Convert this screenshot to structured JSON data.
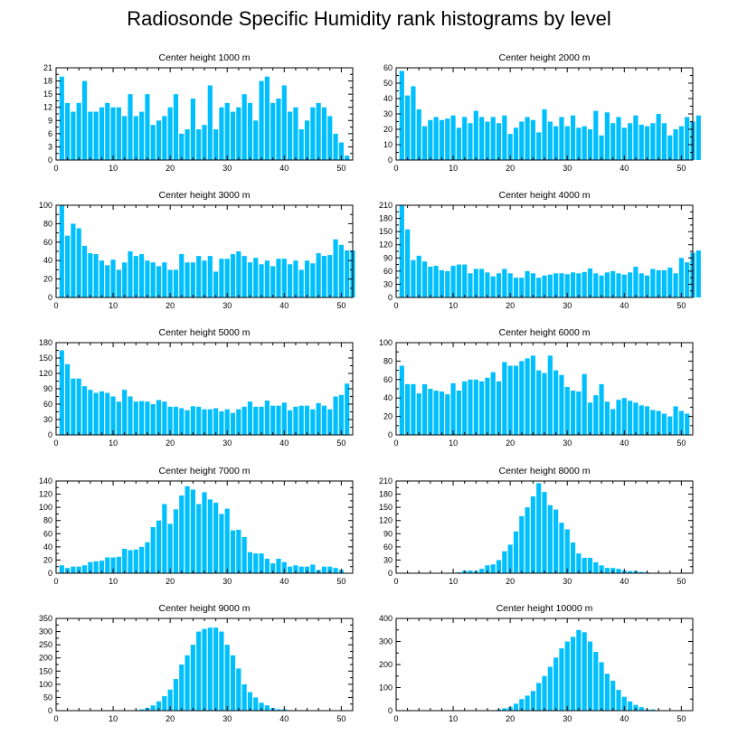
{
  "title": "Radiosonde Specific Humidity rank histograms by level",
  "bar_color": "#00bfff",
  "chart_data": [
    {
      "type": "bar",
      "title": "Center height 1000 m",
      "x_start": 1,
      "xlim": [
        0,
        52
      ],
      "x_ticks": [
        0,
        10,
        20,
        30,
        40,
        50
      ],
      "ylim": [
        0,
        21
      ],
      "y_ticks": [
        0,
        3,
        6,
        9,
        12,
        15,
        18,
        21
      ],
      "values": [
        19,
        13,
        11,
        13,
        18,
        11,
        11,
        12,
        13,
        12,
        12,
        10,
        15,
        10,
        11,
        15,
        8,
        9,
        10,
        12,
        15,
        6,
        7,
        14,
        7,
        8,
        17,
        7,
        12,
        13,
        11,
        12,
        15,
        13,
        9,
        18,
        19,
        13,
        14,
        17,
        11,
        12,
        7,
        9,
        12,
        13,
        12,
        10,
        6,
        4,
        1
      ]
    },
    {
      "type": "bar",
      "title": "Center height 2000 m",
      "x_start": 1,
      "xlim": [
        0,
        52
      ],
      "x_ticks": [
        0,
        10,
        20,
        30,
        40,
        50
      ],
      "ylim": [
        0,
        60
      ],
      "y_ticks": [
        0,
        10,
        20,
        30,
        40,
        50,
        60
      ],
      "values": [
        58,
        42,
        48,
        33,
        22,
        26,
        28,
        26,
        27,
        29,
        21,
        28,
        24,
        32,
        28,
        25,
        28,
        24,
        29,
        17,
        21,
        25,
        28,
        26,
        18,
        33,
        25,
        22,
        28,
        22,
        29,
        21,
        22,
        20,
        32,
        16,
        31,
        24,
        28,
        21,
        24,
        29,
        23,
        22,
        24,
        30,
        24,
        16,
        20,
        22,
        28,
        25,
        29
      ]
    },
    {
      "type": "bar",
      "title": "Center height 3000 m",
      "x_start": 1,
      "xlim": [
        0,
        52
      ],
      "x_ticks": [
        0,
        10,
        20,
        30,
        40,
        50
      ],
      "ylim": [
        0,
        100
      ],
      "y_ticks": [
        0,
        20,
        40,
        60,
        80,
        100
      ],
      "values": [
        100,
        67,
        80,
        75,
        56,
        48,
        47,
        40,
        35,
        41,
        30,
        38,
        50,
        45,
        47,
        40,
        38,
        34,
        38,
        30,
        30,
        47,
        38,
        38,
        45,
        40,
        45,
        28,
        42,
        42,
        47,
        50,
        45,
        38,
        43,
        36,
        40,
        34,
        42,
        42,
        36,
        40,
        30,
        40,
        37,
        48,
        45,
        46,
        63,
        57,
        51,
        51
      ]
    },
    {
      "type": "bar",
      "title": "Center height 4000 m",
      "x_start": 1,
      "xlim": [
        0,
        52
      ],
      "x_ticks": [
        0,
        10,
        20,
        30,
        40,
        50
      ],
      "ylim": [
        0,
        210
      ],
      "y_ticks": [
        0,
        30,
        60,
        90,
        120,
        150,
        180,
        210
      ],
      "values": [
        210,
        155,
        85,
        95,
        82,
        70,
        72,
        62,
        60,
        72,
        75,
        75,
        55,
        65,
        65,
        57,
        48,
        55,
        65,
        55,
        45,
        45,
        60,
        55,
        45,
        50,
        52,
        55,
        55,
        53,
        57,
        55,
        58,
        66,
        55,
        50,
        57,
        60,
        55,
        52,
        57,
        70,
        55,
        50,
        65,
        62,
        62,
        68,
        55,
        90,
        80,
        102,
        107
      ]
    },
    {
      "type": "bar",
      "title": "Center height 5000 m",
      "x_start": 1,
      "xlim": [
        0,
        52
      ],
      "x_ticks": [
        0,
        10,
        20,
        30,
        40,
        50
      ],
      "ylim": [
        0,
        180
      ],
      "y_ticks": [
        0,
        30,
        60,
        90,
        120,
        150,
        180
      ],
      "values": [
        165,
        138,
        110,
        110,
        95,
        88,
        82,
        85,
        82,
        75,
        65,
        88,
        75,
        65,
        66,
        65,
        60,
        68,
        65,
        55,
        55,
        52,
        48,
        56,
        55,
        50,
        50,
        52,
        46,
        50,
        43,
        50,
        55,
        65,
        55,
        55,
        67,
        57,
        57,
        63,
        48,
        55,
        57,
        57,
        50,
        62,
        57,
        50,
        75,
        78,
        100
      ]
    },
    {
      "type": "bar",
      "title": "Center height 6000 m",
      "x_start": 1,
      "xlim": [
        0,
        52
      ],
      "x_ticks": [
        0,
        10,
        20,
        30,
        40,
        50
      ],
      "ylim": [
        0,
        100
      ],
      "y_ticks": [
        0,
        20,
        40,
        60,
        80,
        100
      ],
      "values": [
        75,
        55,
        55,
        45,
        55,
        50,
        48,
        47,
        44,
        56,
        48,
        58,
        60,
        60,
        58,
        62,
        68,
        58,
        79,
        75,
        75,
        80,
        83,
        86,
        70,
        67,
        86,
        70,
        65,
        52,
        48,
        47,
        66,
        35,
        43,
        55,
        36,
        28,
        38,
        40,
        37,
        35,
        32,
        31,
        27,
        26,
        23,
        20,
        31,
        26,
        23
      ]
    },
    {
      "type": "bar",
      "title": "Center height 7000 m",
      "x_start": 1,
      "xlim": [
        0,
        52
      ],
      "x_ticks": [
        0,
        10,
        20,
        30,
        40,
        50
      ],
      "ylim": [
        0,
        140
      ],
      "y_ticks": [
        0,
        20,
        40,
        60,
        80,
        100,
        120,
        140
      ],
      "values": [
        12,
        8,
        10,
        10,
        12,
        17,
        18,
        19,
        24,
        24,
        25,
        37,
        35,
        36,
        40,
        47,
        70,
        80,
        105,
        75,
        97,
        118,
        132,
        127,
        105,
        123,
        112,
        107,
        90,
        98,
        65,
        66,
        55,
        32,
        30,
        30,
        22,
        15,
        22,
        17,
        10,
        12,
        10,
        10,
        13,
        5,
        10,
        10,
        8,
        5
      ]
    },
    {
      "type": "bar",
      "title": "Center height 8000 m",
      "x_start": 1,
      "xlim": [
        0,
        52
      ],
      "x_ticks": [
        0,
        10,
        20,
        30,
        40,
        50
      ],
      "ylim": [
        0,
        210
      ],
      "y_ticks": [
        0,
        30,
        60,
        90,
        120,
        150,
        180,
        210
      ],
      "values": [
        1,
        1,
        1,
        1,
        1,
        1,
        1,
        1,
        1,
        1,
        2,
        6,
        6,
        5,
        10,
        18,
        20,
        30,
        50,
        65,
        95,
        130,
        150,
        175,
        205,
        185,
        155,
        145,
        115,
        100,
        70,
        45,
        35,
        35,
        25,
        18,
        12,
        12,
        10,
        6,
        5,
        5,
        3,
        2,
        1,
        1,
        1,
        1,
        1,
        1,
        1
      ]
    },
    {
      "type": "bar",
      "title": "Center height 9000 m",
      "x_start": 1,
      "xlim": [
        0,
        52
      ],
      "x_ticks": [
        0,
        10,
        20,
        30,
        40,
        50
      ],
      "ylim": [
        0,
        350
      ],
      "y_ticks": [
        0,
        50,
        100,
        150,
        200,
        250,
        300,
        350
      ],
      "values": [
        1,
        1,
        1,
        1,
        1,
        1,
        1,
        1,
        1,
        1,
        1,
        1,
        1,
        2,
        5,
        10,
        20,
        35,
        55,
        80,
        120,
        175,
        210,
        250,
        300,
        310,
        315,
        315,
        300,
        250,
        210,
        160,
        100,
        70,
        50,
        30,
        20,
        10,
        5,
        5,
        2,
        1,
        1,
        1,
        1,
        1,
        1,
        1,
        1,
        1,
        1
      ]
    },
    {
      "type": "bar",
      "title": "Center height 10000 m",
      "x_start": 1,
      "xlim": [
        0,
        52
      ],
      "x_ticks": [
        0,
        10,
        20,
        30,
        40,
        50
      ],
      "ylim": [
        0,
        400
      ],
      "y_ticks": [
        0,
        100,
        200,
        300,
        400
      ],
      "values": [
        1,
        1,
        1,
        1,
        1,
        1,
        1,
        1,
        1,
        1,
        1,
        1,
        1,
        1,
        1,
        1,
        2,
        5,
        10,
        15,
        30,
        50,
        65,
        85,
        120,
        150,
        190,
        230,
        270,
        300,
        320,
        350,
        340,
        300,
        255,
        210,
        160,
        130,
        90,
        60,
        40,
        25,
        15,
        5,
        5,
        2,
        1,
        1,
        1,
        1,
        1
      ]
    }
  ]
}
